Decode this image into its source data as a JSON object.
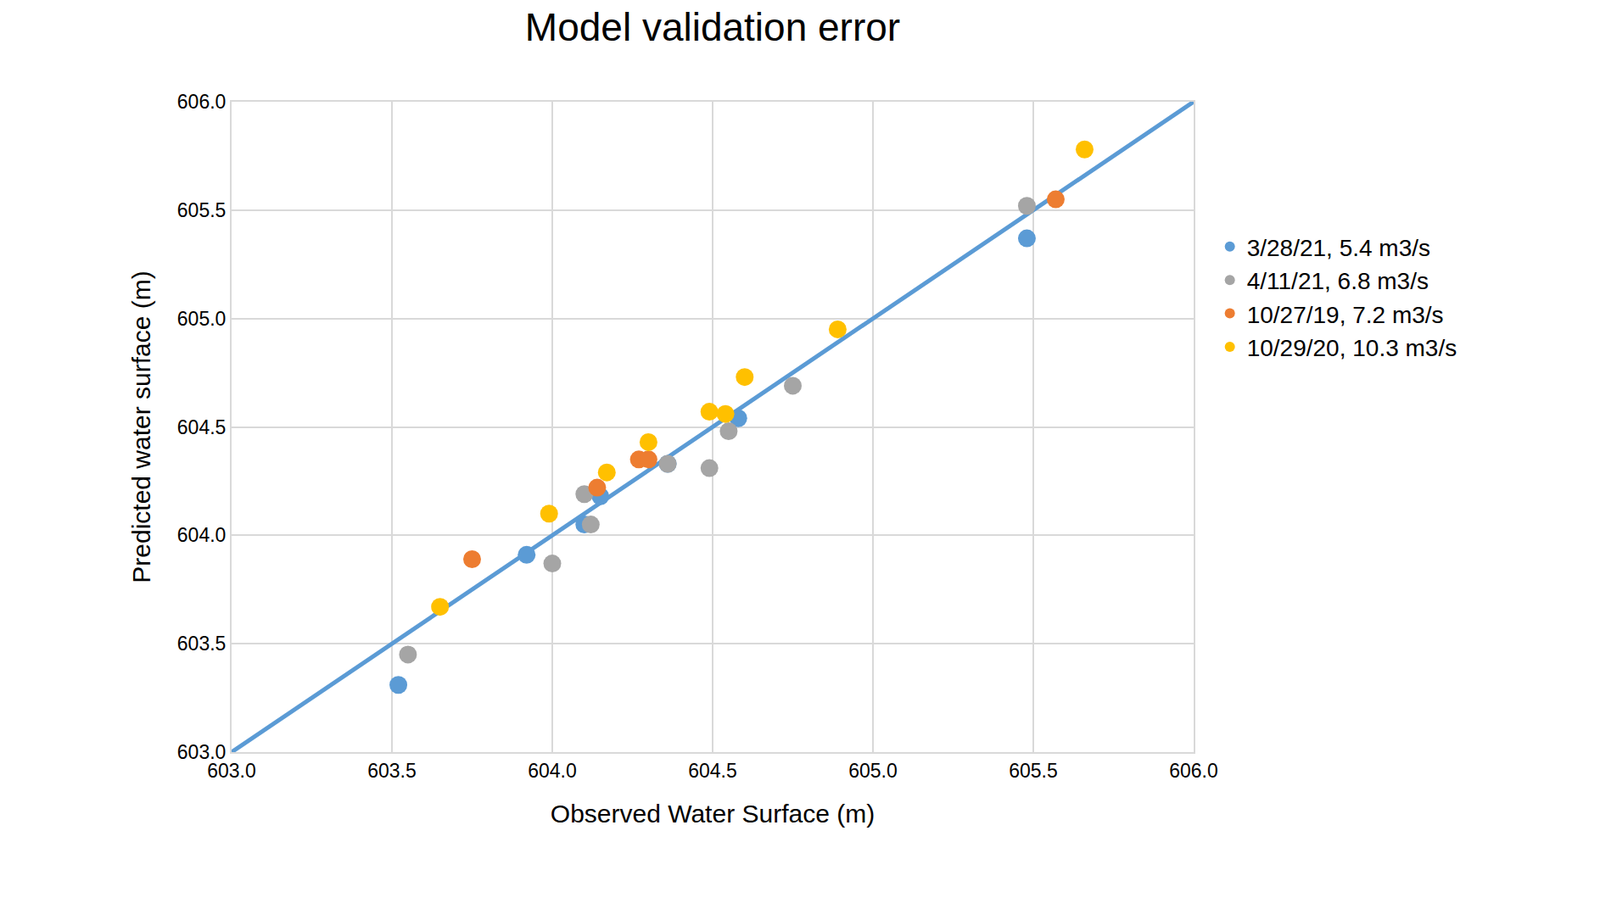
{
  "chart_data": {
    "type": "scatter",
    "title": "Model validation error",
    "x_label": "Observed Water Surface (m)",
    "y_label": "Predicted water surface (m)",
    "xlim": [
      603,
      606
    ],
    "ylim": [
      603,
      606
    ],
    "xticks": [
      {
        "value": 603,
        "label": "603.0"
      },
      603.5,
      {
        "value": 604,
        "label": "604.0"
      },
      604.5,
      {
        "value": 605,
        "label": "605.0"
      },
      605.5,
      {
        "value": 606,
        "label": "606.0"
      }
    ],
    "yticks": [
      {
        "value": 603,
        "label": "603.0"
      },
      603.5,
      {
        "value": 604,
        "label": "604.0"
      },
      604.5,
      {
        "value": 605,
        "label": "605.0"
      },
      605.5,
      {
        "value": 606,
        "label": "606.0"
      }
    ],
    "grid": true,
    "legend": "right",
    "marker": "circle",
    "reference_line": {
      "x": [
        603,
        606
      ],
      "y": [
        603,
        606
      ],
      "color": "#5b9bd5",
      "line_style": "solid"
    },
    "series": [
      {
        "name": "3/28/21, 5.4 m3/s",
        "color": "#5b9bd5",
        "x": [
          603.52,
          603.92,
          604.1,
          604.15,
          604.36,
          604.58,
          605.48
        ],
        "values": [
          603.31,
          603.91,
          604.05,
          604.18,
          604.33,
          604.54,
          605.37
        ]
      },
      {
        "name": "4/11/21, 6.8 m3/s",
        "color": "#a5a5a5",
        "x": [
          603.55,
          604.0,
          604.1,
          604.12,
          604.36,
          604.49,
          604.55,
          604.75,
          605.48
        ],
        "values": [
          603.45,
          603.87,
          604.19,
          604.05,
          604.33,
          604.31,
          604.48,
          604.69,
          605.52
        ]
      },
      {
        "name": "10/27/19, 7.2 m3/s",
        "color": "#ed7d31",
        "x": [
          603.75,
          604.14,
          604.27,
          604.3,
          605.57
        ],
        "values": [
          603.89,
          604.22,
          604.35,
          604.35,
          605.55
        ]
      },
      {
        "name": "10/29/20, 10.3 m3/s",
        "color": "#ffc000",
        "x": [
          603.65,
          603.99,
          604.17,
          604.3,
          604.49,
          604.54,
          604.6,
          604.89,
          605.66
        ],
        "values": [
          603.67,
          604.1,
          604.29,
          604.43,
          604.57,
          604.56,
          604.73,
          604.95,
          605.78
        ]
      }
    ]
  }
}
